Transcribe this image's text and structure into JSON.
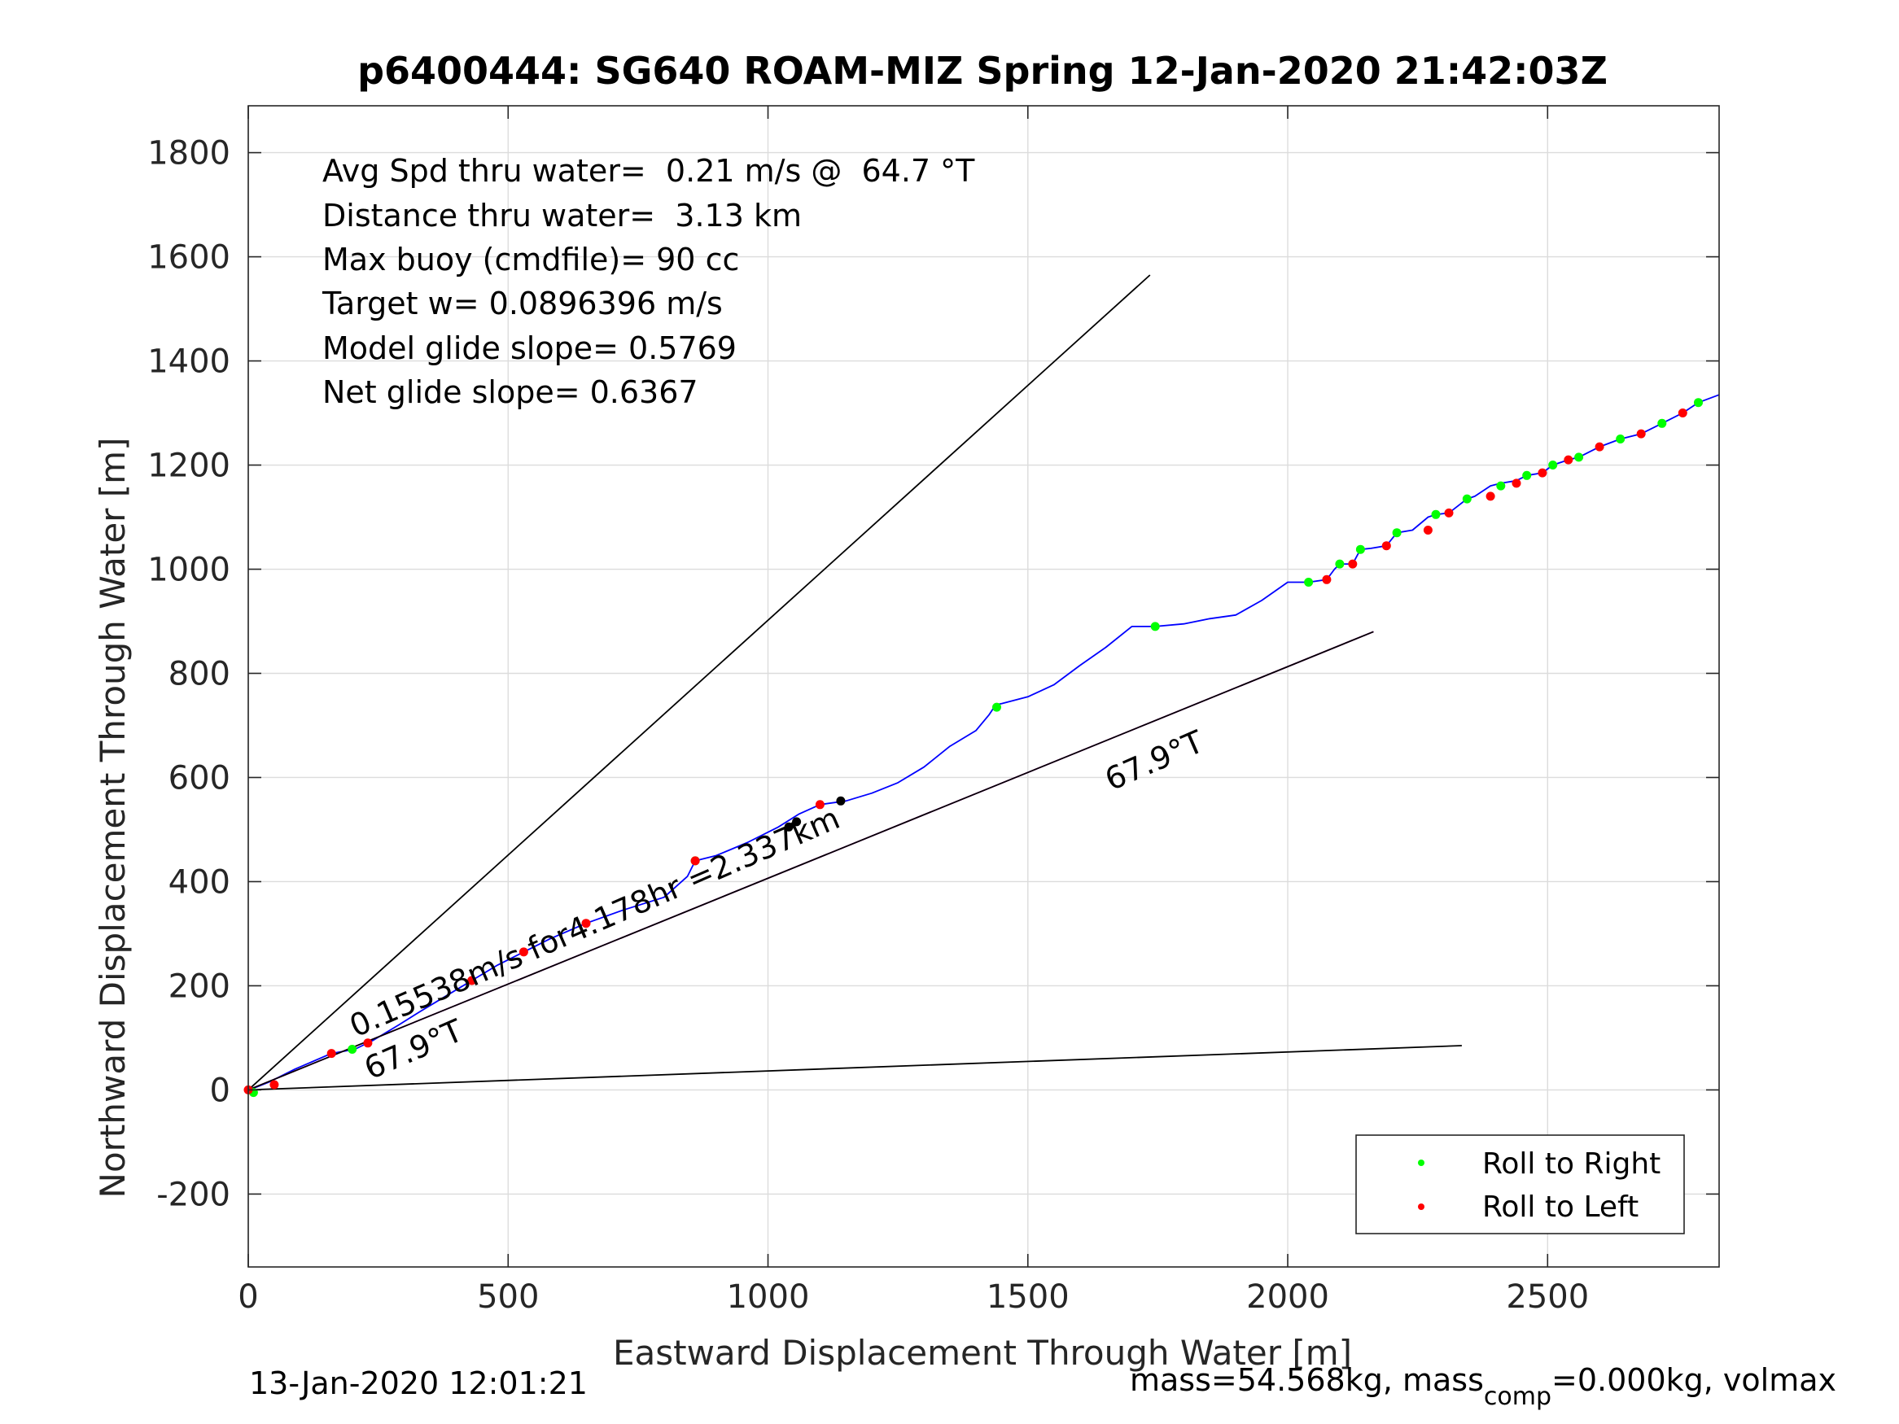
{
  "chart_data": {
    "type": "scatter",
    "title": "p6400444: SG640 ROAM-MIZ Spring 12-Jan-2020 21:42:03Z",
    "xlabel": "Eastward Displacement Through Water [m]",
    "ylabel": "Northward Displacement Through Water [m]",
    "xlim": [
      0,
      2830
    ],
    "ylim": [
      -340,
      1890
    ],
    "xticks": [
      0,
      500,
      1000,
      1500,
      2000,
      2500
    ],
    "yticks": [
      -200,
      0,
      200,
      400,
      600,
      800,
      1000,
      1200,
      1400,
      1600,
      1800
    ],
    "grid": true,
    "info_lines": [
      "Avg Spd thru water=  0.21 m/s @  64.7 °T",
      "Distance thru water=  3.13 km",
      "Max buoy (cmdfile)= 90 cc",
      "Target w= 0.0896396 m/s",
      "Model glide slope= 0.5769",
      "Net glide slope= 0.6367"
    ],
    "annotations": {
      "speed_label": "0.15538m/s for4.178hr =2.337km",
      "heading_label_1": "67.9°T",
      "heading_label_2": "67.9°T"
    },
    "legend": {
      "location": "bottom-right",
      "entries": [
        {
          "label": "Roll to Right",
          "color": "#00ff00"
        },
        {
          "label": "Roll to Left",
          "color": "#ff0000"
        }
      ]
    },
    "series": [
      {
        "name": "track",
        "style": "line",
        "color": "#0000ff",
        "x": [
          0,
          15,
          40,
          90,
          160,
          205,
          240,
          290,
          330,
          380,
          430,
          480,
          530,
          580,
          650,
          720,
          800,
          845,
          860,
          900,
          960,
          1020,
          1060,
          1100,
          1150,
          1200,
          1250,
          1300,
          1350,
          1400,
          1425,
          1435,
          1440,
          1450,
          1500,
          1550,
          1600,
          1650,
          1700,
          1745,
          1800,
          1850,
          1900,
          1950,
          2000,
          2040,
          2075,
          2090,
          2100,
          2125,
          2140,
          2160,
          2190,
          2210,
          2240,
          2270,
          2285,
          2310,
          2345,
          2360,
          2390,
          2410,
          2440,
          2460,
          2490,
          2510,
          2540,
          2560,
          2600,
          2640,
          2680,
          2720,
          2760,
          2790,
          2830
        ],
        "y": [
          0,
          5,
          15,
          40,
          70,
          78,
          95,
          125,
          150,
          180,
          210,
          240,
          265,
          290,
          320,
          345,
          370,
          410,
          440,
          450,
          475,
          505,
          530,
          548,
          555,
          570,
          590,
          620,
          660,
          690,
          720,
          735,
          740,
          742,
          755,
          778,
          815,
          850,
          890,
          890,
          895,
          905,
          912,
          940,
          975,
          975,
          980,
          1000,
          1010,
          1010,
          1038,
          1040,
          1045,
          1070,
          1075,
          1100,
          1105,
          1108,
          1135,
          1140,
          1160,
          1165,
          1170,
          1180,
          1185,
          1200,
          1210,
          1215,
          1235,
          1250,
          1260,
          1280,
          1300,
          1320,
          1335
        ]
      },
      {
        "name": "model_heading",
        "style": "line",
        "color": "#ff00ff",
        "x": [
          0,
          2165
        ],
        "y": [
          0,
          880
        ]
      },
      {
        "name": "net_heading",
        "style": "line",
        "color": "#000000",
        "x": [
          0,
          2165
        ],
        "y": [
          0,
          880
        ]
      },
      {
        "name": "sweep_upper",
        "style": "line",
        "color": "#000000",
        "x": [
          0,
          1735
        ],
        "y": [
          0,
          1565
        ]
      },
      {
        "name": "sweep_lower",
        "style": "line",
        "color": "#000000",
        "x": [
          0,
          2335
        ],
        "y": [
          0,
          85
        ]
      },
      {
        "name": "Roll to Right",
        "style": "points",
        "color": "#00ff00",
        "x": [
          10,
          200,
          860,
          1440,
          1745,
          2040,
          2100,
          2140,
          2210,
          2285,
          2345,
          2410,
          2460,
          2510,
          2560,
          2640,
          2720,
          2790
        ],
        "y": [
          -5,
          78,
          440,
          735,
          890,
          975,
          1010,
          1038,
          1070,
          1105,
          1135,
          1160,
          1180,
          1200,
          1215,
          1250,
          1280,
          1320
        ]
      },
      {
        "name": "Roll to Left",
        "style": "points",
        "color": "#ff0000",
        "x": [
          0,
          50,
          160,
          230,
          430,
          530,
          650,
          860,
          1100,
          2075,
          2125,
          2190,
          2270,
          2310,
          2390,
          2440,
          2490,
          2540,
          2600,
          2680,
          2760
        ],
        "y": [
          0,
          10,
          70,
          90,
          210,
          265,
          320,
          440,
          548,
          980,
          1010,
          1045,
          1075,
          1108,
          1140,
          1165,
          1185,
          1210,
          1235,
          1260,
          1300
        ]
      },
      {
        "name": "extra_points",
        "style": "points",
        "color": "#000000",
        "x": [
          1040,
          1055,
          1140
        ],
        "y": [
          505,
          515,
          555
        ]
      }
    ]
  },
  "footer": {
    "timestamp": "13-Jan-2020 12:01:21",
    "mass_prefix": "mass=54.568kg, mass",
    "mass_sub": "comp",
    "mass_suffix": "=0.000kg, volmax"
  }
}
